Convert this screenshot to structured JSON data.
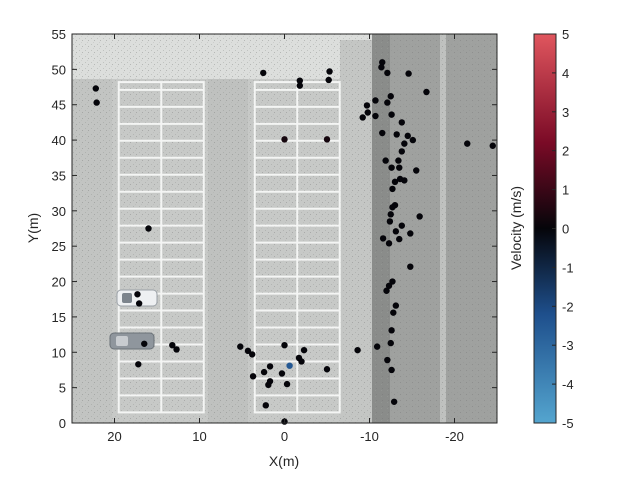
{
  "chart_data": {
    "type": "scatter",
    "xlabel": "X(m)",
    "ylabel": "Y(m)",
    "xlim": [
      25,
      -25
    ],
    "ylim": [
      0,
      55
    ],
    "x_reversed": true,
    "xticks": [
      20,
      10,
      0,
      -10,
      -20
    ],
    "xtick_labels": [
      "20",
      "10",
      "0",
      "-10",
      "-20"
    ],
    "yticks": [
      0,
      5,
      10,
      15,
      20,
      25,
      30,
      35,
      40,
      45,
      50,
      55
    ],
    "ytick_labels": [
      "0",
      "5",
      "10",
      "15",
      "20",
      "25",
      "30",
      "35",
      "40",
      "45",
      "50",
      "55"
    ],
    "grid": false,
    "background": "aerial image of parking lot",
    "colorbar": {
      "label": "Velocity (m/s)",
      "range": [
        -5,
        5
      ],
      "ticks": [
        5,
        4,
        3,
        2,
        1,
        0,
        -1,
        -2,
        -3,
        -4,
        -5
      ],
      "tick_labels": [
        "5",
        "4",
        "3",
        "2",
        "1",
        "0",
        "-1",
        "-2",
        "-3",
        "-4",
        "-5"
      ],
      "colormap_stops": [
        "#54a5cf",
        "#1e4f8c",
        "#05050a",
        "#7a0a26",
        "#e0565e"
      ]
    },
    "series": [
      {
        "points": [
          {
            "x": 22.2,
            "y": 47.3,
            "v": 0
          },
          {
            "x": 22.1,
            "y": 45.3,
            "v": 0
          },
          {
            "x": 16.0,
            "y": 27.5,
            "v": 0
          },
          {
            "x": 17.3,
            "y": 18.2,
            "v": 0
          },
          {
            "x": 17.1,
            "y": 16.9,
            "v": 0
          },
          {
            "x": 16.5,
            "y": 11.2,
            "v": 0
          },
          {
            "x": 13.2,
            "y": 11.0,
            "v": 0
          },
          {
            "x": 12.7,
            "y": 10.4,
            "v": 0
          },
          {
            "x": 17.2,
            "y": 8.3,
            "v": 0
          },
          {
            "x": 2.5,
            "y": 49.5,
            "v": 0
          },
          {
            "x": -1.8,
            "y": 48.4,
            "v": 0
          },
          {
            "x": -1.8,
            "y": 47.7,
            "v": 0
          },
          {
            "x": -5.3,
            "y": 49.7,
            "v": 0
          },
          {
            "x": -5.2,
            "y": 48.5,
            "v": 0
          },
          {
            "x": 0.0,
            "y": 40.1,
            "v": 0.3
          },
          {
            "x": -5.0,
            "y": 40.1,
            "v": 0.3
          },
          {
            "x": 5.2,
            "y": 10.8,
            "v": 0
          },
          {
            "x": 4.3,
            "y": 10.2,
            "v": 0
          },
          {
            "x": 3.8,
            "y": 9.7,
            "v": 0
          },
          {
            "x": 0.0,
            "y": 11.0,
            "v": 0
          },
          {
            "x": -2.3,
            "y": 10.3,
            "v": 0
          },
          {
            "x": -1.7,
            "y": 9.2,
            "v": 0
          },
          {
            "x": -2.0,
            "y": 8.7,
            "v": 0
          },
          {
            "x": 1.7,
            "y": 8.0,
            "v": 0
          },
          {
            "x": -0.6,
            "y": 8.1,
            "v": -2.5
          },
          {
            "x": 2.4,
            "y": 7.2,
            "v": 0
          },
          {
            "x": 0.3,
            "y": 7.0,
            "v": 0
          },
          {
            "x": 3.7,
            "y": 6.6,
            "v": 0
          },
          {
            "x": 1.7,
            "y": 5.9,
            "v": 0
          },
          {
            "x": 1.9,
            "y": 5.4,
            "v": 0
          },
          {
            "x": -0.3,
            "y": 5.5,
            "v": 0
          },
          {
            "x": -5.0,
            "y": 7.6,
            "v": 0
          },
          {
            "x": 2.2,
            "y": 2.5,
            "v": 0
          },
          {
            "x": 0.0,
            "y": 0.2,
            "v": 0
          },
          {
            "x": -8.6,
            "y": 10.3,
            "v": 0
          },
          {
            "x": -10.9,
            "y": 10.8,
            "v": 0
          },
          {
            "x": -11.5,
            "y": 51.0,
            "v": 0
          },
          {
            "x": -11.4,
            "y": 50.3,
            "v": 0
          },
          {
            "x": -12.1,
            "y": 49.5,
            "v": 0
          },
          {
            "x": -14.6,
            "y": 49.4,
            "v": 0
          },
          {
            "x": -16.7,
            "y": 46.8,
            "v": 0
          },
          {
            "x": -10.7,
            "y": 45.6,
            "v": 0
          },
          {
            "x": -12.5,
            "y": 46.2,
            "v": 0
          },
          {
            "x": -12.1,
            "y": 45.3,
            "v": 0
          },
          {
            "x": -9.7,
            "y": 44.9,
            "v": 0
          },
          {
            "x": -9.8,
            "y": 43.9,
            "v": 0
          },
          {
            "x": -9.2,
            "y": 43.2,
            "v": 0
          },
          {
            "x": -10.7,
            "y": 43.4,
            "v": 0
          },
          {
            "x": -12.6,
            "y": 43.6,
            "v": 0
          },
          {
            "x": -13.8,
            "y": 42.5,
            "v": 0
          },
          {
            "x": -11.5,
            "y": 41.0,
            "v": 0
          },
          {
            "x": -13.2,
            "y": 40.8,
            "v": 0
          },
          {
            "x": -14.5,
            "y": 40.6,
            "v": 0
          },
          {
            "x": -15.1,
            "y": 40.0,
            "v": 0
          },
          {
            "x": -14.1,
            "y": 39.5,
            "v": 0
          },
          {
            "x": -21.5,
            "y": 39.5,
            "v": 0
          },
          {
            "x": -24.5,
            "y": 39.2,
            "v": 0
          },
          {
            "x": -13.8,
            "y": 38.4,
            "v": 0
          },
          {
            "x": -11.9,
            "y": 37.1,
            "v": 0
          },
          {
            "x": -13.4,
            "y": 37.1,
            "v": 0
          },
          {
            "x": -12.6,
            "y": 36.1,
            "v": 0
          },
          {
            "x": -13.5,
            "y": 36.1,
            "v": 0
          },
          {
            "x": -15.5,
            "y": 35.7,
            "v": 0
          },
          {
            "x": -13.6,
            "y": 34.5,
            "v": 0
          },
          {
            "x": -14.1,
            "y": 34.3,
            "v": 0
          },
          {
            "x": -13.0,
            "y": 34.1,
            "v": 0
          },
          {
            "x": -12.7,
            "y": 33.1,
            "v": 0
          },
          {
            "x": -13.0,
            "y": 30.8,
            "v": 0
          },
          {
            "x": -12.7,
            "y": 30.5,
            "v": 0
          },
          {
            "x": -12.5,
            "y": 29.5,
            "v": 0
          },
          {
            "x": -15.9,
            "y": 29.2,
            "v": 0
          },
          {
            "x": -12.4,
            "y": 28.5,
            "v": 0
          },
          {
            "x": -13.8,
            "y": 27.9,
            "v": 0
          },
          {
            "x": -13.1,
            "y": 27.1,
            "v": 0
          },
          {
            "x": -14.8,
            "y": 26.8,
            "v": 0
          },
          {
            "x": -11.6,
            "y": 26.1,
            "v": 0
          },
          {
            "x": -13.5,
            "y": 26.0,
            "v": 0
          },
          {
            "x": -12.3,
            "y": 25.4,
            "v": 0
          },
          {
            "x": -14.8,
            "y": 22.1,
            "v": 0
          },
          {
            "x": -12.7,
            "y": 20.0,
            "v": 0
          },
          {
            "x": -12.3,
            "y": 19.4,
            "v": 0
          },
          {
            "x": -12.0,
            "y": 18.7,
            "v": 0
          },
          {
            "x": -13.1,
            "y": 16.6,
            "v": 0
          },
          {
            "x": -12.8,
            "y": 15.6,
            "v": 0
          },
          {
            "x": -12.6,
            "y": 13.1,
            "v": 0
          },
          {
            "x": -12.5,
            "y": 11.3,
            "v": 0
          },
          {
            "x": -12.1,
            "y": 8.9,
            "v": 0
          },
          {
            "x": -12.6,
            "y": 7.5,
            "v": 0
          },
          {
            "x": -12.9,
            "y": 3.0,
            "v": 0
          }
        ]
      }
    ]
  }
}
